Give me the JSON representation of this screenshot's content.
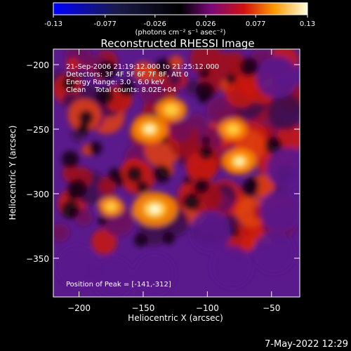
{
  "colorbar": {
    "ticks": [
      -0.13,
      -0.077,
      -0.026,
      0.026,
      0.077,
      0.13
    ],
    "tick_labels": [
      "-0.13",
      "-0.077",
      "-0.026",
      "0.026",
      "0.077",
      "0.13"
    ],
    "units_label": "(photons cm⁻² s⁻¹ asec⁻²)"
  },
  "annotation": {
    "time_range": "21-Sep-2006 21:19:12.000 to 21:25:12.000",
    "detectors": "Detectors: 3F 4F 5F 6F 7F 8F, Att 0",
    "energy_range": "Energy Range: 3.0 - 6.0 keV",
    "clean_counts": "Clean    Total counts: 8.02E+04",
    "peak_position": "Position of Peak = [-141,-312]"
  },
  "footer": {
    "date_stamp": "7-May-2022 12:29"
  },
  "chart_data": {
    "type": "heatmap",
    "title": "Reconstructed RHESSI Image",
    "xlabel": "Heliocentric X (arcsec)",
    "ylabel": "Heliocentric Y (arcsec)",
    "xlim": [
      -220,
      -28
    ],
    "ylim": [
      -380,
      -188
    ],
    "xticks": [
      -200,
      -150,
      -100,
      -50
    ],
    "yticks": [
      -200,
      -250,
      -300,
      -350
    ],
    "xtick_labels": [
      "−200",
      "−150",
      "−100",
      "−50"
    ],
    "ytick_labels": [
      "−200",
      "−250",
      "−300",
      "−350"
    ],
    "colormap": "blue-black-purple-red-orange-yellow-white",
    "colorbar_range": [
      -0.13,
      0.13
    ],
    "peak": {
      "x": -141,
      "y": -312
    },
    "bright_sources": [
      {
        "x": -145,
        "y": -250,
        "level": 0.09
      },
      {
        "x": -141,
        "y": -312,
        "level": 0.12
      },
      {
        "x": -128,
        "y": -235,
        "level": 0.07
      },
      {
        "x": -75,
        "y": -275,
        "level": 0.08
      },
      {
        "x": -80,
        "y": -250,
        "level": 0.06
      },
      {
        "x": -175,
        "y": -310,
        "level": 0.05
      }
    ]
  }
}
